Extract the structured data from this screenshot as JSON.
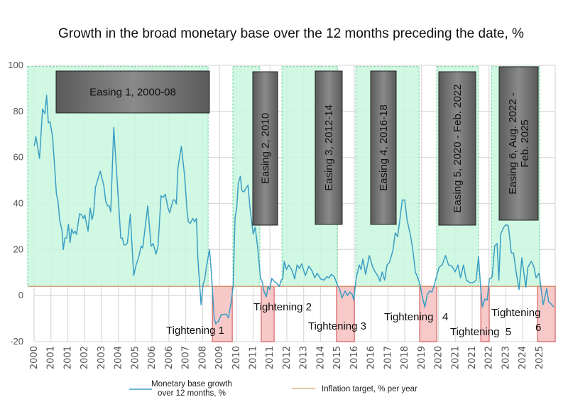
{
  "chart_data": {
    "type": "line",
    "title": "Growth in the broad monetary base over the 12 months preceding the date, %",
    "xlabel": "",
    "ylabel": "",
    "ylim": [
      -20,
      100
    ],
    "xlim": [
      2000.0,
      2025.9
    ],
    "yticks": [
      100,
      80,
      60,
      40,
      20,
      0,
      -20
    ],
    "xtick_labels": [
      "2000",
      "2001",
      "2001",
      "2002",
      "2003",
      "2004",
      "2005",
      "2006",
      "2006",
      "2007",
      "2008",
      "2009",
      "2010",
      "2011",
      "2011",
      "2012",
      "2013",
      "2014",
      "2015",
      "2016",
      "2016",
      "2017",
      "2018",
      "2019",
      "2020",
      "2021",
      "2021",
      "2022",
      "2023",
      "2024",
      "2025"
    ],
    "grid": true,
    "legend_position": "bottom",
    "colors": {
      "series": "#3b9ec4",
      "inflation_target": "#d98a55",
      "easing_fill": "#c8f7de",
      "easing_border": "#6fd39c",
      "tightening_fill": "#f6c3c3",
      "tightening_border": "#d24a4a",
      "label_box": "#666666"
    },
    "series": [
      {
        "name": "Monetary base growth over 12 months, %",
        "x": [
          2000.01,
          2000.09,
          2000.27,
          2000.42,
          2000.54,
          2000.62,
          2000.71,
          2000.79,
          2000.92,
          2001.11,
          2001.19,
          2001.27,
          2001.39,
          2001.45,
          2001.53,
          2001.62,
          2001.71,
          2001.79,
          2001.87,
          2001.95,
          2002.04,
          2002.11,
          2002.26,
          2002.36,
          2002.45,
          2002.52,
          2002.68,
          2002.79,
          2002.88,
          2002.96,
          2003.05,
          2003.29,
          2003.46,
          2003.56,
          2003.65,
          2003.73,
          2003.81,
          2003.96,
          2004.15,
          2004.31,
          2004.39,
          2004.47,
          2004.55,
          2004.64,
          2004.78,
          2004.95,
          2005.07,
          2005.19,
          2005.32,
          2005.4,
          2005.65,
          2005.81,
          2005.92,
          2006.06,
          2006.16,
          2006.31,
          2006.41,
          2006.52,
          2006.66,
          2006.74,
          2006.91,
          2006.99,
          2007.07,
          2007.15,
          2007.32,
          2007.48,
          2007.61,
          2007.67,
          2007.76,
          2007.89,
          2007.98,
          2008.07,
          2008.14,
          2008.3,
          2008.4,
          2008.48,
          2008.56,
          2008.72,
          2008.81,
          2008.95,
          2009.03,
          2009.19,
          2009.3,
          2009.46,
          2009.55,
          2009.66,
          2009.79,
          2009.89,
          2009.99,
          2010.07,
          2010.15,
          2010.25,
          2010.33,
          2010.42,
          2010.63,
          2010.73,
          2010.89,
          2010.99,
          2011.13,
          2011.25,
          2011.34,
          2011.42,
          2011.54,
          2011.63,
          2011.72,
          2011.81,
          2011.95,
          2012.07,
          2012.19,
          2012.28,
          2012.36,
          2012.43,
          2012.54,
          2012.66,
          2012.83,
          2012.95,
          2013.07,
          2013.19,
          2013.3,
          2013.48,
          2013.66,
          2013.81,
          2013.95,
          2014.07,
          2014.25,
          2014.42,
          2014.54,
          2014.66,
          2014.77,
          2014.92,
          2015.07,
          2015.19,
          2015.3,
          2015.46,
          2015.57,
          2015.69,
          2015.81,
          2015.89,
          2016.01,
          2016.16,
          2016.25,
          2016.34,
          2016.48,
          2016.66,
          2016.83,
          2016.95,
          2017.07,
          2017.19,
          2017.3,
          2017.42,
          2017.54,
          2017.66,
          2017.83,
          2017.95,
          2018.07,
          2018.19,
          2018.3,
          2018.42,
          2018.54,
          2018.72,
          2018.83,
          2018.95,
          2019.07,
          2019.19,
          2019.28,
          2019.42,
          2019.54,
          2019.66,
          2019.77,
          2019.89,
          2020.01,
          2020.13,
          2020.28,
          2020.45,
          2020.6,
          2020.77,
          2020.92,
          2021.07,
          2021.19,
          2021.34,
          2021.48,
          2021.66,
          2021.83,
          2021.97,
          2022.09,
          2022.19,
          2022.28,
          2022.4,
          2022.52,
          2022.63,
          2022.77,
          2022.89,
          2023.01,
          2023.1,
          2023.19,
          2023.34,
          2023.46,
          2023.57,
          2023.72,
          2023.83,
          2023.95,
          2024.1,
          2024.24,
          2024.44,
          2024.54,
          2024.71,
          2024.83,
          2024.95,
          2025.1,
          2025.19,
          2025.3,
          2025.48,
          2025.57,
          2025.69,
          2025.83
        ],
        "y": [
          65,
          69,
          59.5,
          81,
          79,
          87,
          75,
          75.4,
          69,
          44,
          41,
          33,
          28,
          20,
          25,
          25,
          31,
          23,
          29,
          27,
          28,
          26.5,
          35.6,
          35,
          33.5,
          35,
          28,
          38,
          33,
          36,
          47,
          54,
          48,
          41,
          39,
          39,
          36.4,
          73,
          47,
          25,
          25,
          22,
          22,
          23,
          35.4,
          8.7,
          13.3,
          16.4,
          21.5,
          20.7,
          39,
          21.5,
          22.6,
          18,
          21.5,
          43.4,
          42.6,
          44,
          38,
          36,
          41.5,
          41.5,
          39.8,
          55.4,
          64.8,
          52,
          36,
          32,
          31.4,
          33.5,
          32,
          33.5,
          16,
          -4,
          5,
          7,
          12.3,
          20,
          10,
          -9.7,
          -12.3,
          -10.8,
          -8.2,
          -8.2,
          -8,
          -9.7,
          -3,
          3.6,
          34,
          38,
          48.7,
          51.8,
          45.6,
          45,
          48,
          38,
          26.7,
          29.7,
          19.5,
          7.7,
          6,
          2,
          -0.5,
          4,
          2.6,
          7.5,
          6,
          5.3,
          3.9,
          6.7,
          7.2,
          14.9,
          11.3,
          13.3,
          10.8,
          7.2,
          13.3,
          11.8,
          13.8,
          8.7,
          12.8,
          10.8,
          7.7,
          9.7,
          7.2,
          6.7,
          8.2,
          7.7,
          9.2,
          8.2,
          4.6,
          2.6,
          -1,
          2,
          0,
          1.5,
          0.5,
          -2,
          7.7,
          13.3,
          11.3,
          15.9,
          9.2,
          17.4,
          12.3,
          10.3,
          8.7,
          6.2,
          10.3,
          6.7,
          13.3,
          14.4,
          19.5,
          27.2,
          25.6,
          33.8,
          41.5,
          41.5,
          32.8,
          25.6,
          19.5,
          10.3,
          7.7,
          4.6,
          0,
          -5,
          0.5,
          2,
          1.5,
          4.6,
          8.7,
          12.3,
          13.3,
          17.4,
          13.3,
          12.8,
          10.3,
          13.3,
          7.7,
          13.3,
          6.7,
          5.6,
          5.6,
          6.7,
          16.9,
          3.6,
          -5,
          -1.5,
          -2,
          7.2,
          8.2,
          21.5,
          22.6,
          6.7,
          26.7,
          29.7,
          30.8,
          30.3,
          18.5,
          18.5,
          10.8,
          2.6,
          16.4,
          3.6,
          12.3,
          14.9,
          12.8,
          7.7,
          9.7,
          3.6,
          -4,
          3,
          -2.6,
          -3.6,
          -5
        ]
      },
      {
        "name": "Inflation target, % per year",
        "value": 4
      }
    ],
    "easing_periods": [
      {
        "label": "Easing 1, 2000-08",
        "start": 1999.68,
        "end": 2008.65,
        "orientation": "horizontal"
      },
      {
        "label": "Easing 2, 2010",
        "start": 2009.88,
        "end": 2011.22,
        "orientation": "vertical"
      },
      {
        "label": "Easing 3, 2012-14",
        "start": 2012.32,
        "end": 2015.07,
        "orientation": "vertical"
      },
      {
        "label": "Easing 4, 2016-18",
        "start": 2015.99,
        "end": 2019.13,
        "orientation": "vertical"
      },
      {
        "label": "Easing 5, 2020 - Feb. 2022",
        "start": 2020.01,
        "end": 2022.09,
        "orientation": "vertical"
      },
      {
        "label": "Easing 6, Aug. 2022 - Feb. 2025",
        "lines": [
          "Easing 6, Aug. 2022 -",
          "Feb. 2025"
        ],
        "start": 2022.73,
        "end": 2025.13,
        "orientation": "vertical"
      }
    ],
    "tightening_periods": [
      {
        "label": "Tightening 1",
        "start": 2008.86,
        "end": 2009.85
      },
      {
        "label": "Tightening 2",
        "start": 2011.29,
        "end": 2011.93
      },
      {
        "label": "Tightening 3",
        "start": 2015.03,
        "end": 2015.92
      },
      {
        "label": "Tightening   4",
        "start": 2019.16,
        "end": 2020.01
      },
      {
        "label": "Tightening  5",
        "start": 2022.2,
        "end": 2022.62
      },
      {
        "label": "Tightening",
        "label2": "6",
        "start": 2025.02,
        "end": 2025.9
      }
    ],
    "legend": [
      {
        "lines": [
          "Monetary base growth",
          "over 12 months, %"
        ],
        "color": "#3b9ec4"
      },
      {
        "lines": [
          "Inflation target, % per year"
        ],
        "color": "#d9b48a"
      }
    ]
  }
}
